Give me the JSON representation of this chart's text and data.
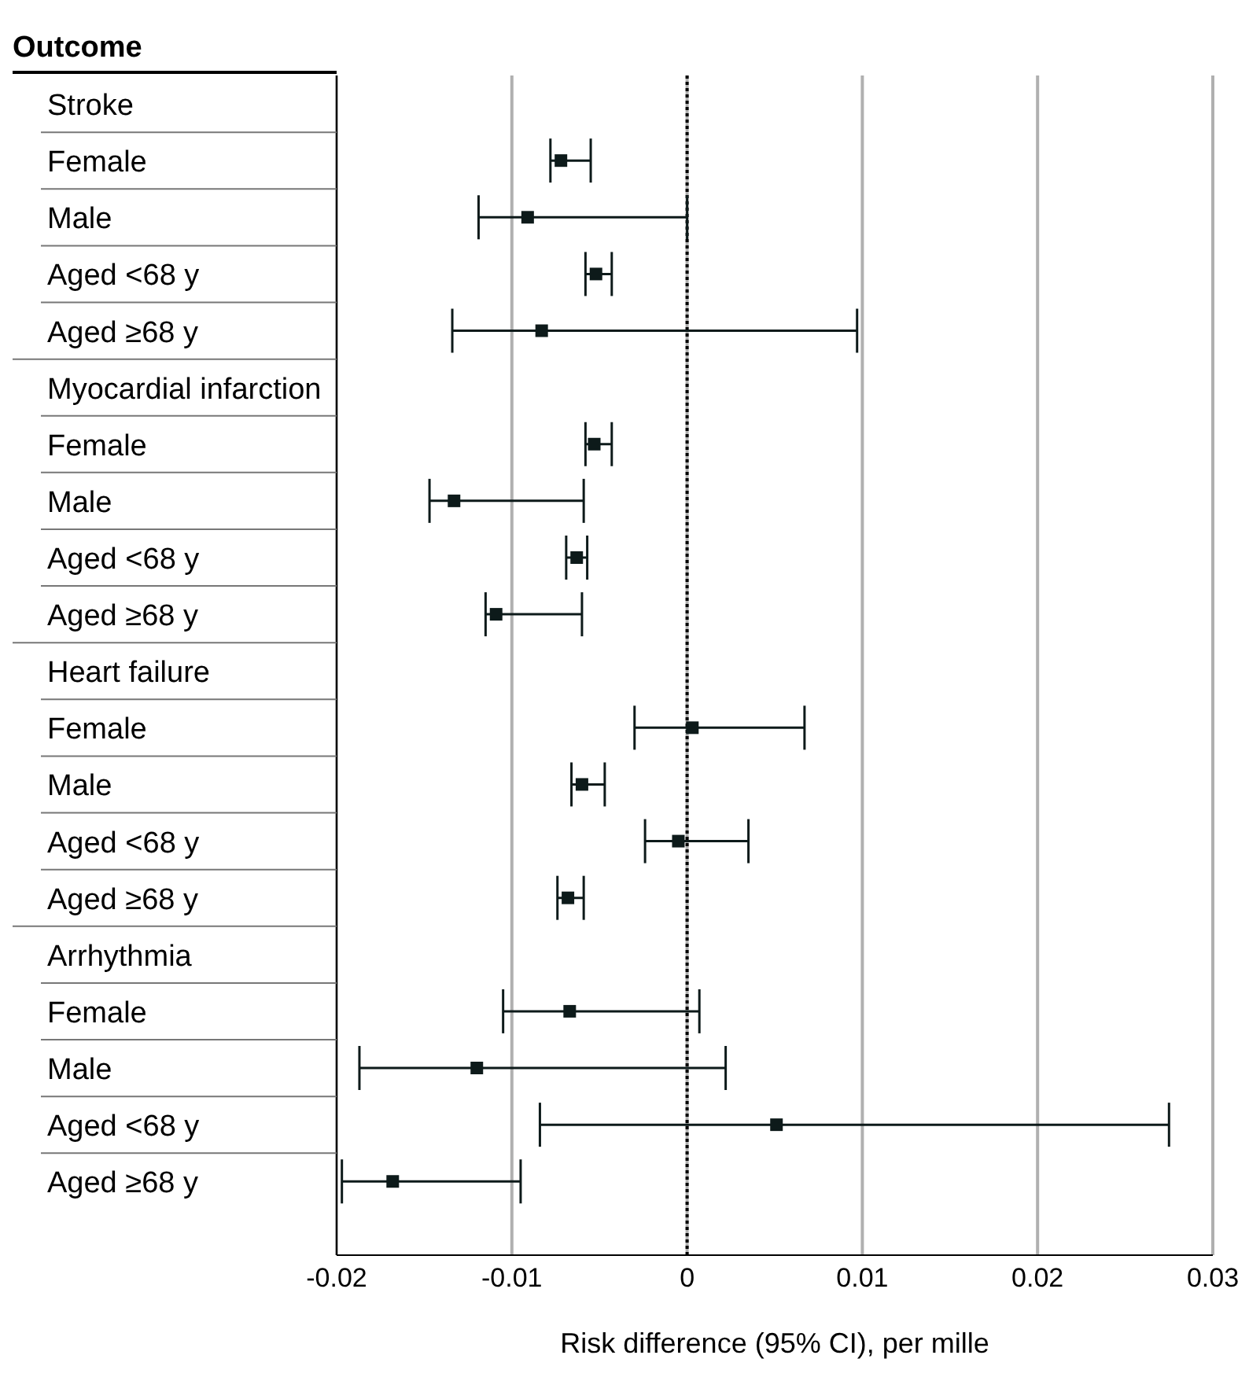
{
  "chart_data": {
    "type": "scatter",
    "orientation": "horizontal",
    "xlabel": "Risk difference (95% CI), per mille",
    "ylabel": "Outcome",
    "categories": [
      "Stroke",
      "Female",
      "Male",
      "Aged <68 y",
      "Aged ≥68 y",
      "Myocardial infarction",
      "Female",
      "Male",
      "Aged <68 y",
      "Aged ≥68 y",
      "Heart failure",
      "Female",
      "Male",
      "Aged <68 y",
      "Aged ≥68 y",
      "Arrhythmia",
      "Female",
      "Male",
      "Aged <68 y",
      "Aged ≥68 y"
    ],
    "values": [
      null,
      -0.0072,
      -0.0091,
      -0.0052,
      -0.0083,
      null,
      -0.0053,
      -0.0133,
      -0.0063,
      -0.0109,
      null,
      0.0003,
      -0.006,
      -0.0005,
      -0.0068,
      null,
      -0.0067,
      -0.012,
      0.0051,
      -0.0168
    ],
    "errors": [
      null,
      [
        -0.0078,
        -0.0055
      ],
      [
        -0.0119,
        0
      ],
      [
        -0.0058,
        -0.0043
      ],
      [
        -0.0134,
        0.0097
      ],
      null,
      [
        -0.0058,
        -0.0043
      ],
      [
        -0.0147,
        -0.0059
      ],
      [
        -0.0069,
        -0.0057
      ],
      [
        -0.0115,
        -0.006
      ],
      null,
      [
        -0.003,
        0.0067
      ],
      [
        -0.0066,
        -0.0047
      ],
      [
        -0.0024,
        0.0035
      ],
      [
        -0.0074,
        -0.0059
      ],
      null,
      [
        -0.0105,
        0.0007
      ],
      [
        -0.0187,
        0.0022
      ],
      [
        -0.0084,
        0.0275
      ],
      [
        -0.0197,
        -0.0095
      ]
    ],
    "color": "#0d1a1a",
    "marker": "square",
    "xlim": [
      -0.02,
      0.03
    ],
    "xticks": [
      -0.02,
      -0.01,
      0,
      0.01,
      0.02,
      0.03
    ],
    "ref_lines": [
      {
        "axis": "x",
        "value": 0,
        "line_style": "dotted",
        "color": "#000000"
      }
    ],
    "grid": "x"
  }
}
